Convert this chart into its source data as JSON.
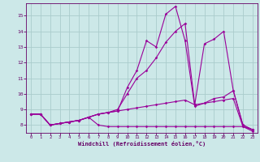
{
  "bg_color": "#cce8e8",
  "grid_color": "#aacccc",
  "line_color": "#990099",
  "xlabel": "Windchill (Refroidissement éolien,°C)",
  "xlabel_color": "#660066",
  "tick_color": "#660066",
  "xlim": [
    -0.5,
    23.5
  ],
  "ylim": [
    7.5,
    15.8
  ],
  "yticks": [
    8,
    9,
    10,
    11,
    12,
    13,
    14,
    15
  ],
  "xticks": [
    0,
    1,
    2,
    3,
    4,
    5,
    6,
    7,
    8,
    9,
    10,
    11,
    12,
    13,
    14,
    15,
    16,
    17,
    18,
    19,
    20,
    21,
    22,
    23
  ],
  "series": [
    [
      8.7,
      8.7,
      8.0,
      8.1,
      8.2,
      8.3,
      8.5,
      8.7,
      8.8,
      8.9,
      10.4,
      11.5,
      13.4,
      13.0,
      15.1,
      15.6,
      13.4,
      9.2,
      9.4,
      9.7,
      9.8,
      10.2,
      8.0,
      7.7
    ],
    [
      8.7,
      8.7,
      8.0,
      8.1,
      8.2,
      8.3,
      8.5,
      8.7,
      8.8,
      8.9,
      9.0,
      9.1,
      9.2,
      9.3,
      9.4,
      9.5,
      9.6,
      9.3,
      9.4,
      9.5,
      9.6,
      9.7,
      7.9,
      7.6
    ],
    [
      8.7,
      8.7,
      8.0,
      8.1,
      8.2,
      8.3,
      8.5,
      8.0,
      7.9,
      7.9,
      7.9,
      7.9,
      7.9,
      7.9,
      7.9,
      7.9,
      7.9,
      7.9,
      7.9,
      7.9,
      7.9,
      7.9,
      7.9,
      7.7
    ],
    [
      8.7,
      8.7,
      8.0,
      8.1,
      8.2,
      8.3,
      8.5,
      8.7,
      8.8,
      9.0,
      10.0,
      11.0,
      11.5,
      12.3,
      13.3,
      14.0,
      14.5,
      9.3,
      13.2,
      13.5,
      14.0,
      10.2,
      8.0,
      7.7
    ]
  ]
}
